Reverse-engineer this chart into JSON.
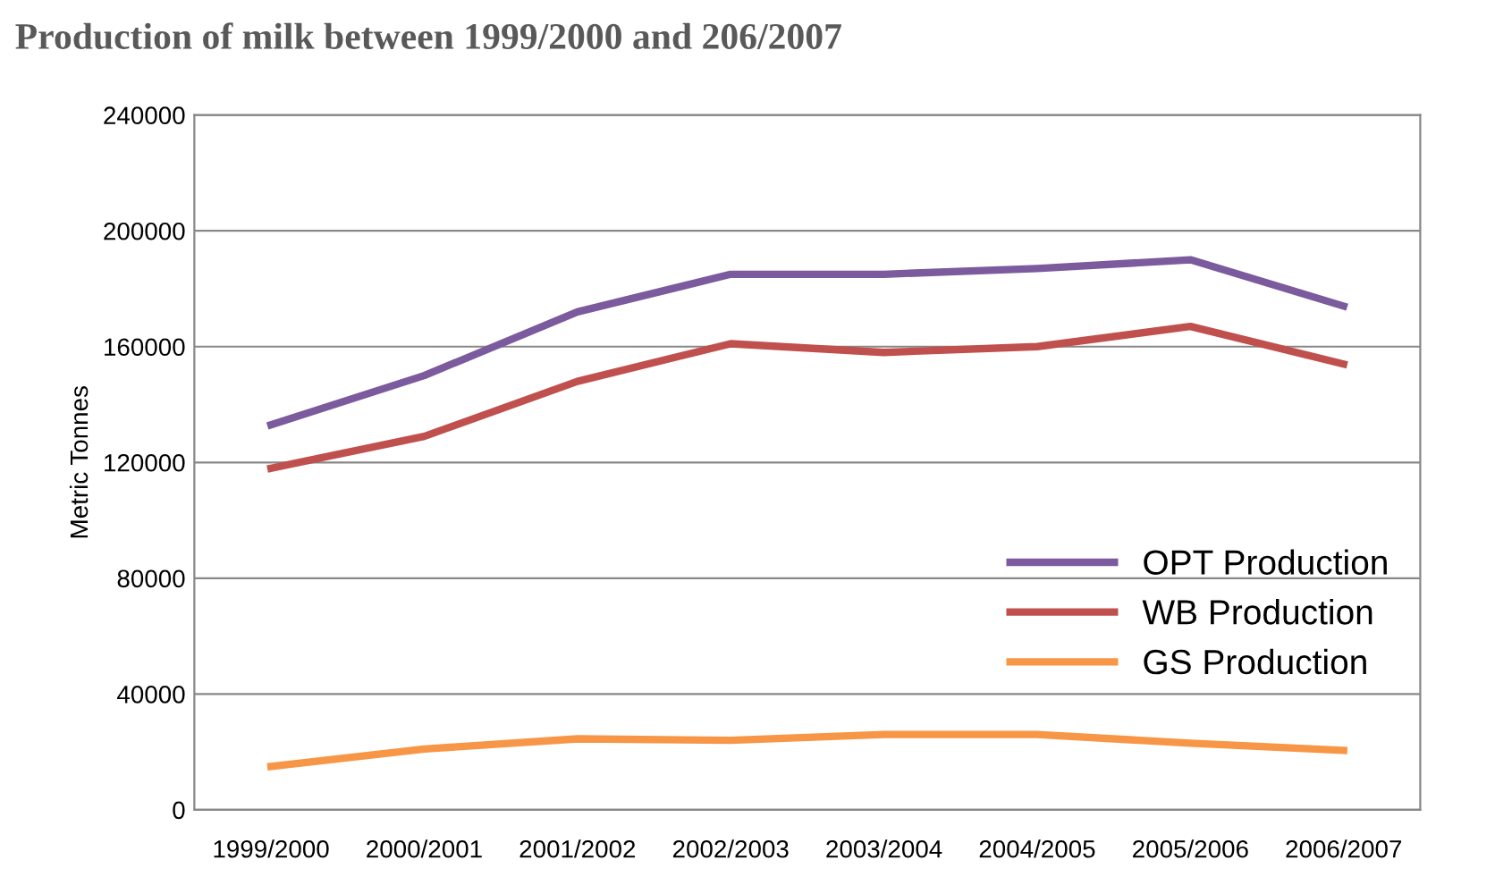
{
  "chart_data": {
    "type": "line",
    "title": "Production of milk between 1999/2000 and 206/2007",
    "ylabel": "Metric Tonnes",
    "categories": [
      "1999/2000",
      "2000/2001",
      "2001/2002",
      "2002/2003",
      "2003/2004",
      "2004/2005",
      "2005/2006",
      "2006/2007"
    ],
    "series": [
      {
        "name": "OPT Production",
        "color": "#7b5a9e",
        "values": [
          133000,
          150000,
          172000,
          185000,
          185000,
          187000,
          190000,
          174000
        ]
      },
      {
        "name": "WB Production",
        "color": "#c0504d",
        "values": [
          118000,
          129000,
          148000,
          161000,
          158000,
          160000,
          167000,
          154000
        ]
      },
      {
        "name": "GS Production",
        "color": "#f79646",
        "values": [
          15000,
          21000,
          24500,
          24000,
          26000,
          26000,
          23000,
          20500
        ]
      }
    ],
    "ylim": [
      0,
      240000
    ],
    "yticks": [
      0,
      40000,
      80000,
      120000,
      160000,
      200000,
      240000
    ],
    "grid": "y",
    "legend": "bottom right",
    "marker": "none",
    "line_style": "solid"
  }
}
